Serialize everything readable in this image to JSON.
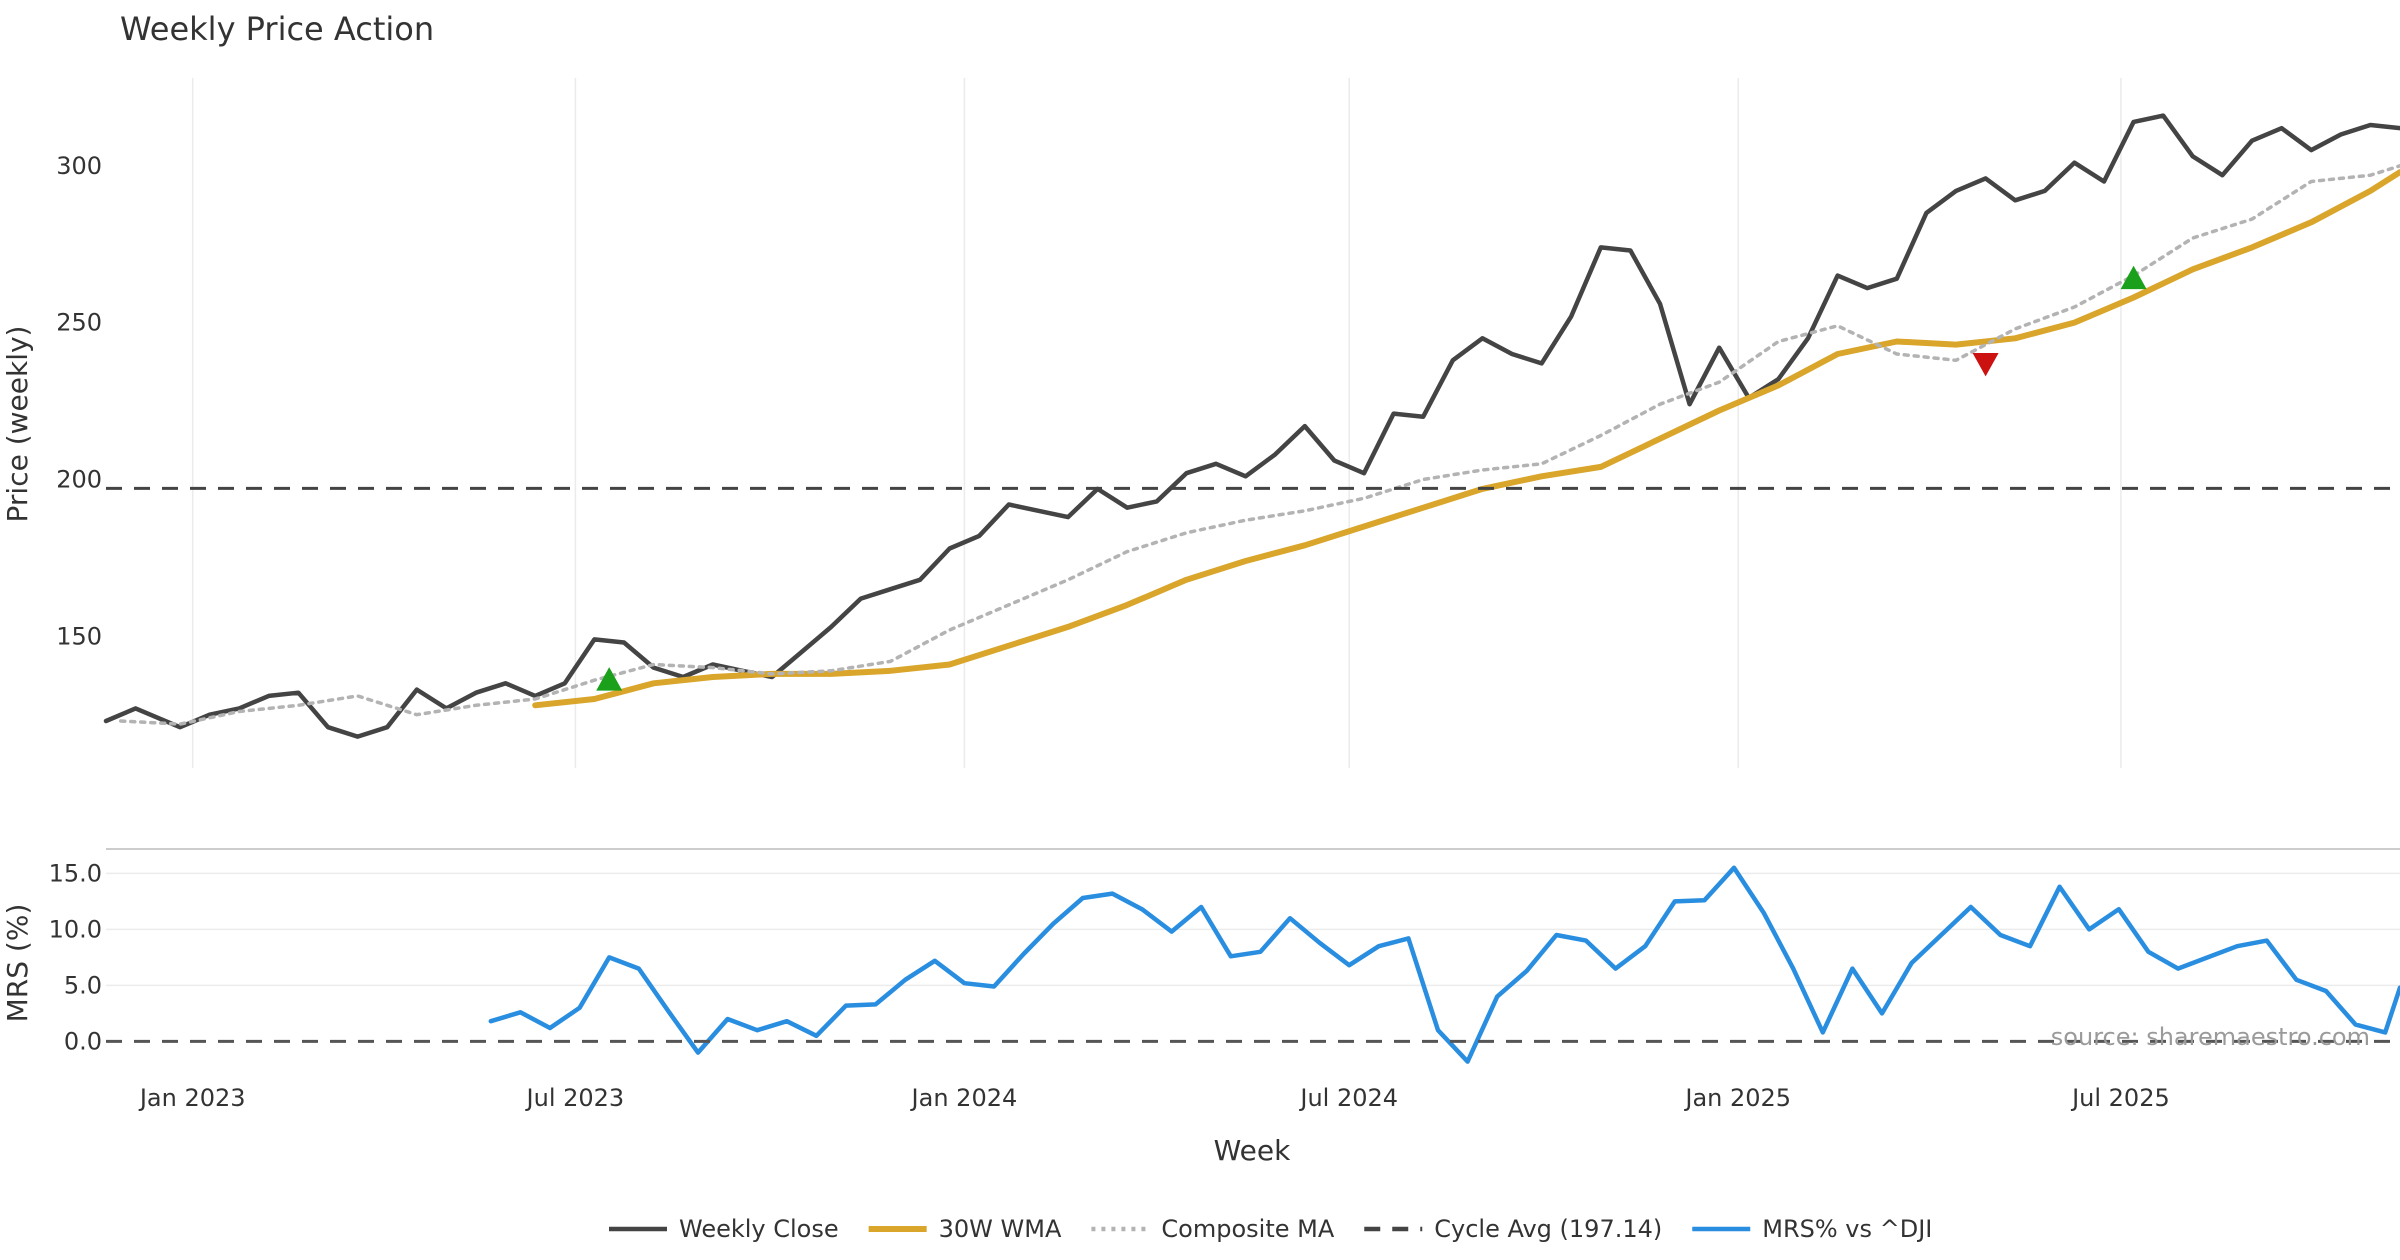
{
  "chart_data": [
    {
      "type": "line",
      "title": "Weekly Price Action",
      "ylabel": "Price (weekly)",
      "ylim": [
        108,
        328
      ],
      "yticks": [
        "150",
        "200",
        "250",
        "300"
      ],
      "x_start": "2022-11-21",
      "x_end": "2025-11-10",
      "grid": "vertical",
      "series": [
        {
          "name": "Weekly Close",
          "color": "#444444",
          "dash": "solid",
          "x": [
            "2022-11-21",
            "2022-12-05",
            "2022-12-26",
            "2023-01-09",
            "2023-01-23",
            "2023-02-06",
            "2023-02-20",
            "2023-03-06",
            "2023-03-20",
            "2023-04-03",
            "2023-04-17",
            "2023-05-01",
            "2023-05-15",
            "2023-05-29",
            "2023-06-12",
            "2023-06-26",
            "2023-07-10",
            "2023-07-24",
            "2023-08-07",
            "2023-08-21",
            "2023-09-04",
            "2023-09-18",
            "2023-10-02",
            "2023-10-16",
            "2023-10-30",
            "2023-11-13",
            "2023-11-27",
            "2023-12-11",
            "2023-12-25",
            "2024-01-08",
            "2024-01-22",
            "2024-02-05",
            "2024-02-19",
            "2024-03-04",
            "2024-03-18",
            "2024-04-01",
            "2024-04-15",
            "2024-04-29",
            "2024-05-13",
            "2024-05-27",
            "2024-06-10",
            "2024-06-24",
            "2024-07-08",
            "2024-07-22",
            "2024-08-05",
            "2024-08-19",
            "2024-09-02",
            "2024-09-16",
            "2024-09-30",
            "2024-10-14",
            "2024-10-28",
            "2024-11-11",
            "2024-11-25",
            "2024-12-09",
            "2024-12-23",
            "2025-01-06",
            "2025-01-20",
            "2025-02-03",
            "2025-02-17",
            "2025-03-03",
            "2025-03-17",
            "2025-03-31",
            "2025-04-14",
            "2025-04-28",
            "2025-05-12",
            "2025-05-26",
            "2025-06-09",
            "2025-06-23",
            "2025-07-07",
            "2025-07-21",
            "2025-08-04",
            "2025-08-18",
            "2025-09-01",
            "2025-09-15",
            "2025-09-29",
            "2025-10-13",
            "2025-10-27",
            "2025-11-10"
          ],
          "values": [
            123,
            127,
            121,
            125,
            127,
            131,
            132,
            121,
            118,
            121,
            133,
            127,
            132,
            135,
            131,
            135,
            149,
            148,
            140,
            137,
            141,
            139,
            137,
            145,
            153,
            162,
            165,
            168,
            178,
            182,
            192,
            190,
            188,
            197,
            191,
            193,
            202,
            205,
            201,
            208,
            217,
            206,
            202,
            221,
            220,
            238,
            245,
            240,
            237,
            252,
            274,
            273,
            256,
            224,
            242,
            226,
            232,
            245,
            265,
            261,
            264,
            285,
            292,
            296,
            289,
            292,
            301,
            295,
            314,
            316,
            303,
            297,
            308,
            312,
            305,
            310,
            313,
            312
          ]
        },
        {
          "name": "30W WMA",
          "color": "#d9a52a",
          "dash": "solid",
          "x": [
            "2023-06-12",
            "2023-07-10",
            "2023-08-07",
            "2023-09-04",
            "2023-10-02",
            "2023-10-30",
            "2023-11-27",
            "2023-12-25",
            "2024-01-22",
            "2024-02-19",
            "2024-03-18",
            "2024-04-15",
            "2024-05-13",
            "2024-06-10",
            "2024-07-08",
            "2024-08-05",
            "2024-09-02",
            "2024-09-30",
            "2024-10-28",
            "2024-11-25",
            "2024-12-23",
            "2025-01-20",
            "2025-02-17",
            "2025-03-17",
            "2025-04-14",
            "2025-05-12",
            "2025-06-09",
            "2025-07-07",
            "2025-08-04",
            "2025-09-01",
            "2025-09-29",
            "2025-10-27",
            "2025-11-10"
          ],
          "values": [
            128,
            130,
            135,
            137,
            138,
            138,
            139,
            141,
            147,
            153,
            160,
            168,
            174,
            179,
            185,
            191,
            197,
            201,
            204,
            213,
            222,
            230,
            240,
            244,
            243,
            245,
            250,
            258,
            267,
            274,
            282,
            292,
            298
          ]
        },
        {
          "name": "Composite MA",
          "color": "#b3b3b3",
          "dash": "dotted",
          "x": [
            "2022-11-28",
            "2022-12-26",
            "2023-01-23",
            "2023-02-20",
            "2023-03-20",
            "2023-04-17",
            "2023-05-15",
            "2023-06-12",
            "2023-07-10",
            "2023-08-07",
            "2023-09-04",
            "2023-10-02",
            "2023-10-30",
            "2023-11-27",
            "2023-12-25",
            "2024-01-22",
            "2024-02-19",
            "2024-03-18",
            "2024-04-15",
            "2024-05-13",
            "2024-06-10",
            "2024-07-08",
            "2024-08-05",
            "2024-09-02",
            "2024-09-30",
            "2024-10-28",
            "2024-11-25",
            "2024-12-23",
            "2025-01-20",
            "2025-02-17",
            "2025-03-17",
            "2025-04-14",
            "2025-05-12",
            "2025-06-09",
            "2025-07-07",
            "2025-08-04",
            "2025-09-01",
            "2025-09-29",
            "2025-10-27",
            "2025-11-10"
          ],
          "values": [
            123,
            122,
            126,
            128,
            131,
            125,
            128,
            130,
            136,
            141,
            140,
            138,
            139,
            142,
            152,
            160,
            168,
            177,
            183,
            187,
            190,
            194,
            200,
            203,
            205,
            214,
            224,
            231,
            244,
            249,
            240,
            238,
            248,
            255,
            265,
            277,
            283,
            295,
            297,
            300
          ]
        },
        {
          "name": "Cycle Avg (197.14)",
          "color": "#444444",
          "dash": "dashed",
          "constant": 197.14
        }
      ],
      "markers": [
        {
          "type": "buy",
          "shape": "triangle-up",
          "color": "#1aa01a",
          "x": "2023-07-17",
          "y": 136
        },
        {
          "type": "sell",
          "shape": "triangle-down",
          "color": "#cc1111",
          "x": "2025-04-28",
          "y": 237
        },
        {
          "type": "buy",
          "shape": "triangle-up",
          "color": "#1aa01a",
          "x": "2025-07-07",
          "y": 264
        }
      ]
    },
    {
      "type": "line",
      "ylabel": "MRS (%)",
      "xlabel": "Week",
      "ylim": [
        -3,
        17
      ],
      "yticks": [
        "0.0",
        "5.0",
        "10.0",
        "15.0"
      ],
      "xticks": [
        "Jan 2023",
        "Jul 2023",
        "Jan 2024",
        "Jul 2024",
        "Jan 2025",
        "Jul 2025"
      ],
      "xtick_dates": [
        "2023-01-01",
        "2023-07-01",
        "2024-01-01",
        "2024-07-01",
        "2025-01-01",
        "2025-07-01"
      ],
      "grid": "horizontal",
      "annotation": "source: sharemaestro.com",
      "series": [
        {
          "name": "MRS% vs ^DJI",
          "color": "#2a8ee0",
          "dash": "solid",
          "x": [
            "2023-05-22",
            "2023-06-05",
            "2023-06-19",
            "2023-07-03",
            "2023-07-17",
            "2023-07-31",
            "2023-08-14",
            "2023-08-28",
            "2023-09-11",
            "2023-09-25",
            "2023-10-09",
            "2023-10-23",
            "2023-11-06",
            "2023-11-20",
            "2023-12-04",
            "2023-12-18",
            "2024-01-01",
            "2024-01-15",
            "2024-01-29",
            "2024-02-12",
            "2024-02-26",
            "2024-03-11",
            "2024-03-25",
            "2024-04-08",
            "2024-04-22",
            "2024-05-06",
            "2024-05-20",
            "2024-06-03",
            "2024-06-17",
            "2024-07-01",
            "2024-07-15",
            "2024-07-29",
            "2024-08-12",
            "2024-08-26",
            "2024-09-09",
            "2024-09-23",
            "2024-10-07",
            "2024-10-21",
            "2024-11-04",
            "2024-11-18",
            "2024-12-02",
            "2024-12-16",
            "2024-12-30",
            "2025-01-13",
            "2025-01-27",
            "2025-02-10",
            "2025-02-24",
            "2025-03-10",
            "2025-03-24",
            "2025-04-07",
            "2025-04-21",
            "2025-05-05",
            "2025-05-19",
            "2025-06-02",
            "2025-06-16",
            "2025-06-30",
            "2025-07-14",
            "2025-07-28",
            "2025-08-11",
            "2025-08-25",
            "2025-09-08",
            "2025-09-22",
            "2025-10-06",
            "2025-10-20",
            "2025-11-03",
            "2025-11-10"
          ],
          "values": [
            1.8,
            2.6,
            1.2,
            3.0,
            7.5,
            6.5,
            2.7,
            -1.0,
            2.0,
            1.0,
            1.8,
            0.5,
            3.2,
            3.3,
            5.5,
            7.2,
            5.2,
            4.9,
            7.8,
            10.5,
            12.8,
            13.2,
            11.8,
            9.8,
            12.0,
            7.6,
            8.0,
            11.0,
            8.8,
            6.8,
            8.5,
            9.2,
            1.0,
            -1.8,
            4.0,
            6.3,
            9.5,
            9.0,
            6.5,
            8.5,
            12.5,
            12.6,
            15.5,
            11.5,
            6.5,
            0.8,
            6.5,
            2.5,
            7.0,
            9.5,
            12.0,
            9.5,
            8.5,
            13.8,
            10.0,
            11.8,
            8.0,
            6.5,
            7.5,
            8.5,
            9.0,
            5.5,
            4.5,
            1.5,
            0.8,
            4.8
          ]
        },
        {
          "name": "zero-line",
          "color": "#555555",
          "dash": "dashed",
          "constant": 0
        }
      ]
    }
  ],
  "legend": {
    "placement": "bottom-center",
    "items": [
      {
        "label": "Weekly Close",
        "color": "#444444",
        "dash": "solid"
      },
      {
        "label": "30W WMA",
        "color": "#d9a52a",
        "dash": "solid"
      },
      {
        "label": "Composite MA",
        "color": "#b3b3b3",
        "dash": "dotted"
      },
      {
        "label": "Cycle Avg (197.14)",
        "color": "#444444",
        "dash": "dashed"
      },
      {
        "label": "MRS% vs ^DJI",
        "color": "#2a8ee0",
        "dash": "solid"
      }
    ]
  }
}
